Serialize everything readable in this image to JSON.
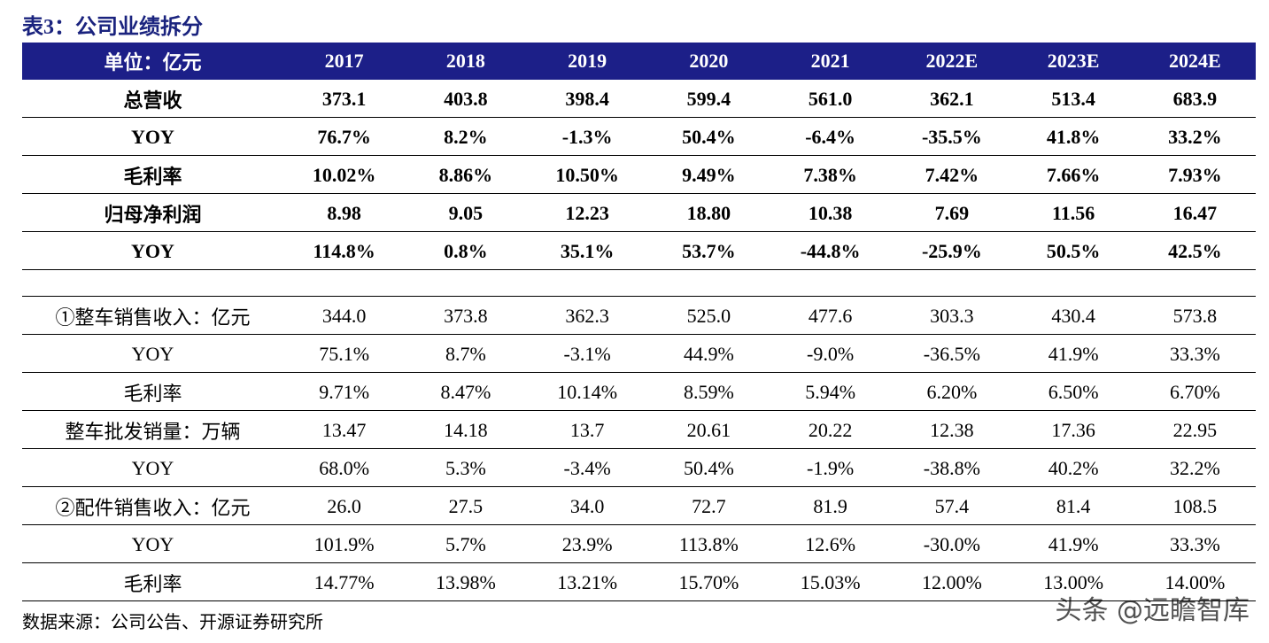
{
  "header": {
    "title": "表3：公司业绩拆分"
  },
  "table": {
    "columns": [
      "单位：亿元",
      "2017",
      "2018",
      "2019",
      "2020",
      "2021",
      "2022E",
      "2023E",
      "2024E"
    ],
    "sections": [
      {
        "bold": true,
        "rows": [
          [
            "总营收",
            "373.1",
            "403.8",
            "398.4",
            "599.4",
            "561.0",
            "362.1",
            "513.4",
            "683.9"
          ],
          [
            "YOY",
            "76.7%",
            "8.2%",
            "-1.3%",
            "50.4%",
            "-6.4%",
            "-35.5%",
            "41.8%",
            "33.2%"
          ],
          [
            "毛利率",
            "10.02%",
            "8.86%",
            "10.50%",
            "9.49%",
            "7.38%",
            "7.42%",
            "7.66%",
            "7.93%"
          ],
          [
            "归母净利润",
            "8.98",
            "9.05",
            "12.23",
            "18.80",
            "10.38",
            "7.69",
            "11.56",
            "16.47"
          ],
          [
            "YOY",
            "114.8%",
            "0.8%",
            "35.1%",
            "53.7%",
            "-44.8%",
            "-25.9%",
            "50.5%",
            "42.5%"
          ]
        ]
      },
      {
        "bold": false,
        "rows": [
          [
            "①整车销售收入：亿元",
            "344.0",
            "373.8",
            "362.3",
            "525.0",
            "477.6",
            "303.3",
            "430.4",
            "573.8"
          ],
          [
            "YOY",
            "75.1%",
            "8.7%",
            "-3.1%",
            "44.9%",
            "-9.0%",
            "-36.5%",
            "41.9%",
            "33.3%"
          ],
          [
            "毛利率",
            "9.71%",
            "8.47%",
            "10.14%",
            "8.59%",
            "5.94%",
            "6.20%",
            "6.50%",
            "6.70%"
          ],
          [
            "整车批发销量：万辆",
            "13.47",
            "14.18",
            "13.7",
            "20.61",
            "20.22",
            "12.38",
            "17.36",
            "22.95"
          ],
          [
            "YOY",
            "68.0%",
            "5.3%",
            "-3.4%",
            "50.4%",
            "-1.9%",
            "-38.8%",
            "40.2%",
            "32.2%"
          ],
          [
            "②配件销售收入：亿元",
            "26.0",
            "27.5",
            "34.0",
            "72.7",
            "81.9",
            "57.4",
            "81.4",
            "108.5"
          ],
          [
            "YOY",
            "101.9%",
            "5.7%",
            "23.9%",
            "113.8%",
            "12.6%",
            "-30.0%",
            "41.9%",
            "33.3%"
          ],
          [
            "毛利率",
            "14.77%",
            "13.98%",
            "13.21%",
            "15.70%",
            "15.03%",
            "12.00%",
            "13.00%",
            "14.00%"
          ]
        ]
      }
    ]
  },
  "footer": {
    "source": "数据来源：公司公告、开源证券研究所",
    "watermark": "头条 @远瞻智库"
  }
}
